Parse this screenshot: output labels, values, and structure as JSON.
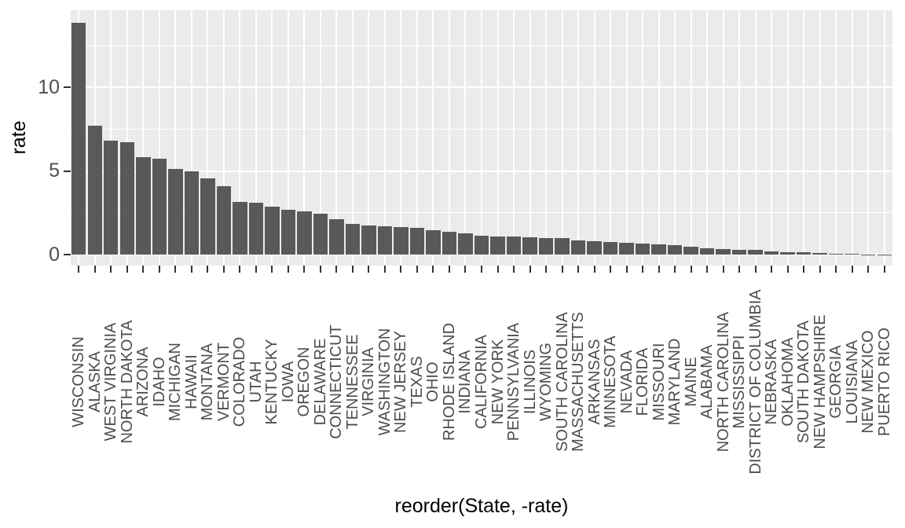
{
  "figure": {
    "background_color": "#FFFFFF"
  },
  "chart_data": {
    "type": "bar",
    "title": "",
    "xlabel": "reorder(State, -rate)",
    "ylabel": "rate",
    "legend": "none",
    "grid": "white major and minor horizontal gridlines plus white vertical gridlines on gray panel",
    "panel_background": "#EBEBEB",
    "bar_color": "#595959",
    "gridline_color": "#FFFFFF",
    "axis_text_color": "#4D4D4D",
    "tick_mark_color": "#333333",
    "axis_title_color": "#000000",
    "ylim": [
      -0.7,
      14.6
    ],
    "yticks": [
      0,
      5,
      10
    ],
    "ytick_labels": [
      "0",
      "5",
      "10"
    ],
    "minor_yticks": [
      2.5,
      7.5,
      12.5
    ],
    "categories": [
      "WISCONSIN",
      "ALASKA",
      "WEST VIRGINIA",
      "NORTH DAKOTA",
      "ARIZONA",
      "IDAHO",
      "MICHIGAN",
      "HAWAII",
      "MONTANA",
      "VERMONT",
      "COLORADO",
      "UTAH",
      "KENTUCKY",
      "IOWA",
      "OREGON",
      "DELAWARE",
      "CONNECTICUT",
      "TENNESSEE",
      "VIRGINIA",
      "WASHINGTON",
      "NEW JERSEY",
      "TEXAS",
      "OHIO",
      "RHODE ISLAND",
      "INDIANA",
      "CALIFORNIA",
      "NEW YORK",
      "PENNSYLVANIA",
      "ILLINOIS",
      "WYOMING",
      "SOUTH CAROLINA",
      "MASSACHUSETTS",
      "ARKANSAS",
      "MINNESOTA",
      "NEVADA",
      "FLORIDA",
      "MISSOURI",
      "MARYLAND",
      "MAINE",
      "ALABAMA",
      "NORTH CAROLINA",
      "MISSISSIPPI",
      "DISTRICT OF COLUMBIA",
      "NEBRASKA",
      "OKLAHOMA",
      "SOUTH DAKOTA",
      "NEW HAMPSHIRE",
      "GEORGIA",
      "LOUISIANA",
      "NEW MEXICO",
      "PUERTO RICO"
    ],
    "values": [
      13.85,
      7.7,
      6.8,
      6.7,
      5.85,
      5.75,
      5.1,
      5.0,
      4.55,
      4.1,
      3.15,
      3.1,
      2.85,
      2.7,
      2.6,
      2.45,
      2.1,
      1.85,
      1.75,
      1.67,
      1.64,
      1.62,
      1.45,
      1.35,
      1.27,
      1.15,
      1.1,
      1.07,
      1.02,
      1.0,
      0.97,
      0.85,
      0.8,
      0.73,
      0.7,
      0.65,
      0.62,
      0.55,
      0.45,
      0.36,
      0.32,
      0.3,
      0.27,
      0.18,
      0.16,
      0.15,
      0.09,
      0.06,
      0.05,
      0.02,
      0.01
    ]
  }
}
